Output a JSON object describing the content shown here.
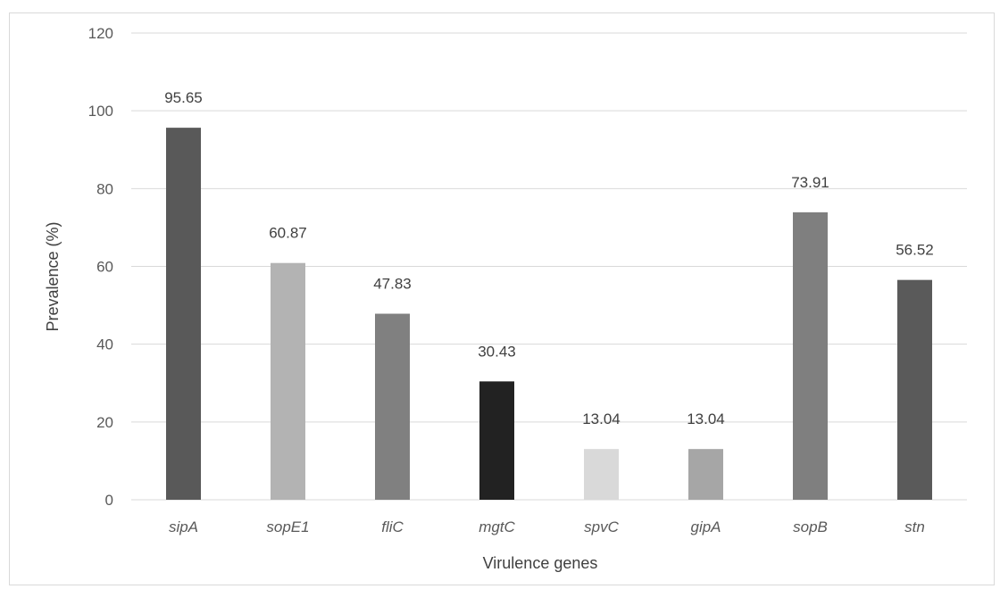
{
  "chart_data": {
    "type": "bar",
    "title": "",
    "xlabel": "Virulence genes",
    "ylabel": "Prevalence (%)",
    "ylim": [
      0,
      120
    ],
    "yticks": [
      0,
      20,
      40,
      60,
      80,
      100,
      120
    ],
    "grid": true,
    "legend": "none",
    "categories": [
      "sipA",
      "sopE1",
      "fliC",
      "mgtC",
      "spvC",
      "gipA",
      "sopB",
      "stn"
    ],
    "values": [
      95.65,
      60.87,
      47.83,
      30.43,
      13.04,
      13.04,
      73.91,
      56.52
    ],
    "data_labels": [
      "95.65",
      "60.87",
      "47.83",
      "30.43",
      "13.04",
      "13.04",
      "73.91",
      "56.52"
    ],
    "bar_colors": [
      "#595959",
      "#b3b3b3",
      "#808080",
      "#222222",
      "#d9d9d9",
      "#a6a6a6",
      "#7f7f7f",
      "#5a5a5a"
    ]
  }
}
